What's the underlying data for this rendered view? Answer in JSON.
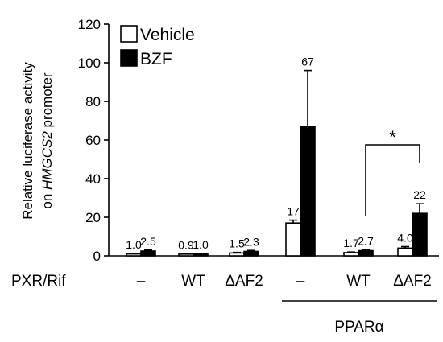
{
  "chart_data": {
    "type": "bar",
    "ylabel_line1": "Relative luciferase activity",
    "ylabel_line2_prefix": "on ",
    "ylabel_line2_gene": "HMGCS2",
    "ylabel_line2_suffix": " promoter",
    "ylim": [
      0,
      120
    ],
    "yticks": [
      0,
      20,
      40,
      60,
      80,
      100,
      120
    ],
    "grid": false,
    "legend_position": "top-left",
    "series": [
      {
        "name": "Vehicle",
        "color": "#ffffff",
        "values": [
          1.0,
          0.9,
          1.5,
          17,
          1.7,
          4.0
        ],
        "errors": [
          0.3,
          0.2,
          0.3,
          1.5,
          0.3,
          0.8
        ],
        "labels": [
          "1.0",
          "0.9",
          "1.5",
          "17",
          "1.7",
          "4.0"
        ]
      },
      {
        "name": "BZF",
        "color": "#000000",
        "values": [
          2.5,
          1.0,
          2.3,
          67,
          2.7,
          22
        ],
        "errors": [
          0.5,
          0.3,
          0.5,
          29,
          0.5,
          5
        ],
        "labels": [
          "2.5",
          "1.0",
          "2.3",
          "67",
          "2.7",
          "22"
        ]
      }
    ],
    "row_label": "PXR/Rif",
    "categories": [
      "–",
      "WT",
      "ΔAF2",
      "–",
      "WT",
      "ΔAF2"
    ],
    "group_label": "PPARα",
    "significance": "*"
  }
}
